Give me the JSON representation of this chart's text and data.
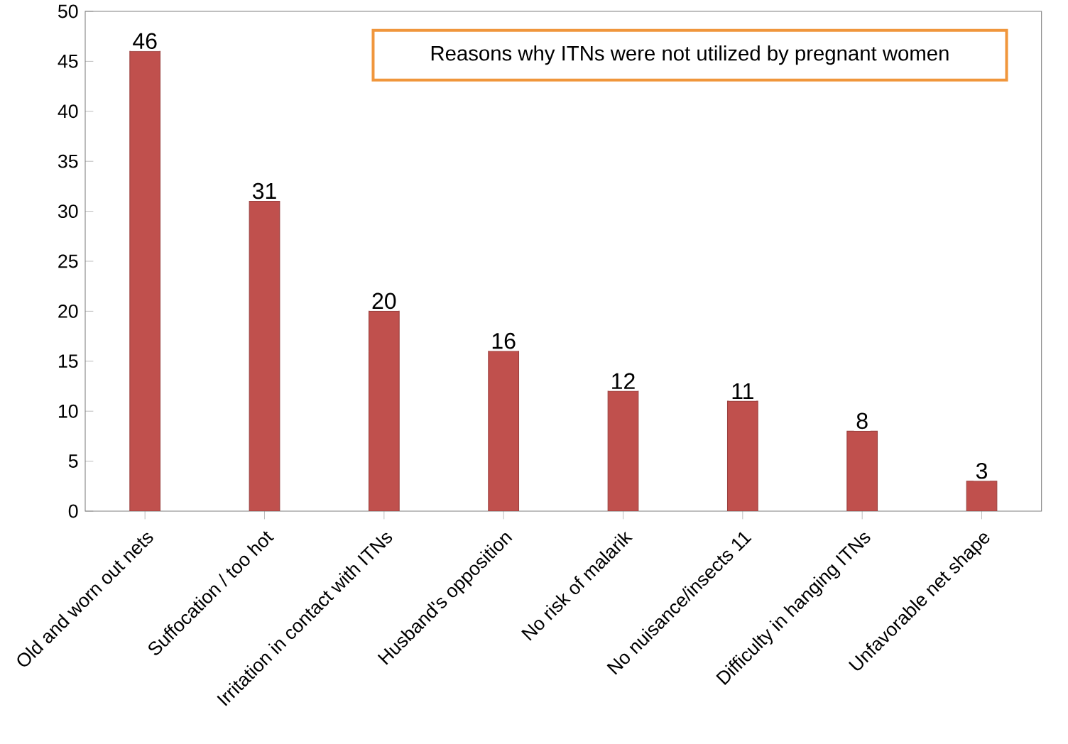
{
  "chart_data": {
    "type": "bar",
    "title": "Reasons why ITNs were not utilized by pregnant women",
    "categories": [
      "Old and worn out nets",
      "Suffocation / too hot",
      "Irritation in contact with ITNs",
      "Husband's opposition",
      "No risk of malarik",
      "No nuisance/insects 11",
      "Difficulty in hanging ITNs",
      "Unfavorable  net shape"
    ],
    "values": [
      46,
      31,
      20,
      16,
      12,
      11,
      8,
      3
    ],
    "color": "#c0504d",
    "ylim": [
      0,
      50
    ],
    "yticks": [
      0,
      5,
      10,
      15,
      20,
      25,
      30,
      35,
      40,
      45,
      50
    ],
    "data_labels": true,
    "grid": false
  }
}
